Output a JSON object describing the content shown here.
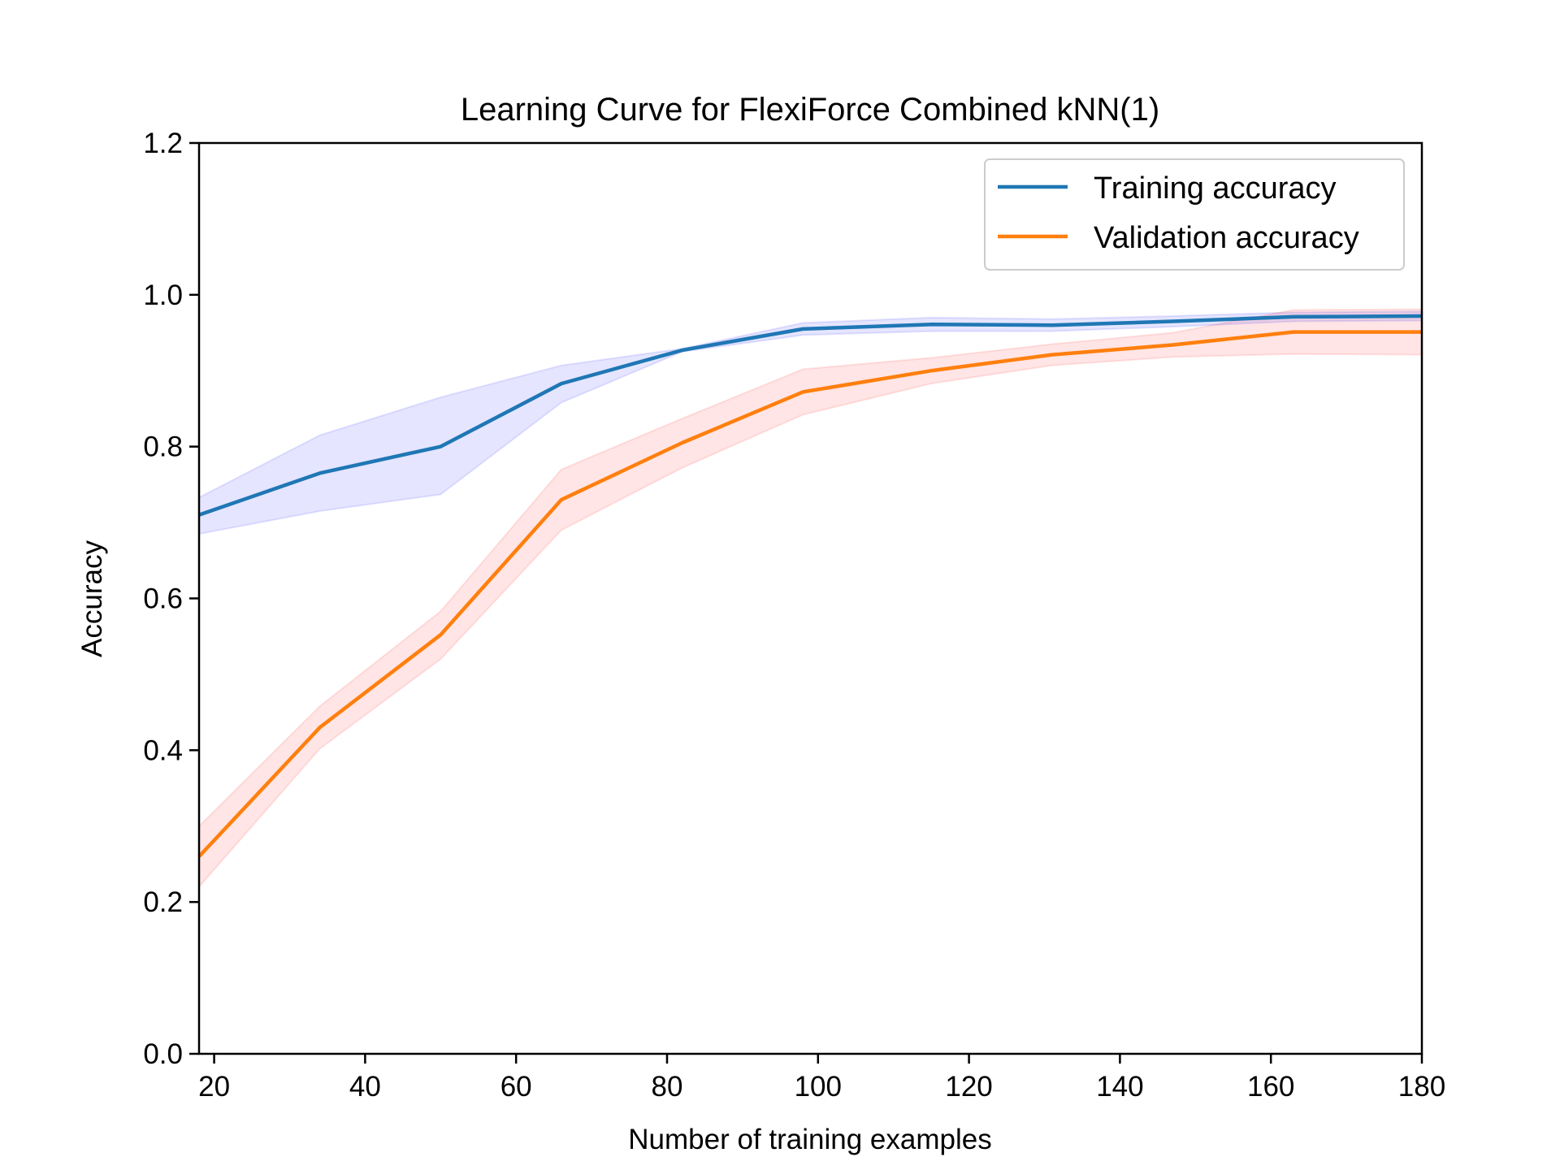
{
  "chart_data": {
    "type": "line",
    "title": "Learning Curve for FlexiForce Combined kNN(1)",
    "xlabel": "Number of training examples",
    "ylabel": "Accuracy",
    "xlim": [
      18,
      180
    ],
    "ylim": [
      0.0,
      1.2
    ],
    "xticks": [
      20,
      40,
      60,
      80,
      100,
      120,
      140,
      160,
      180
    ],
    "xtick_labels": [
      "20",
      "40",
      "60",
      "80",
      "100",
      "120",
      "140",
      "160",
      "180"
    ],
    "yticks": [
      0.0,
      0.2,
      0.4,
      0.6,
      0.8,
      1.0,
      1.2
    ],
    "ytick_labels": [
      "0.0",
      "0.2",
      "0.4",
      "0.6",
      "0.8",
      "1.0",
      "1.2"
    ],
    "grid": false,
    "legend_position": "top-right",
    "x": [
      18,
      34,
      50,
      66,
      82,
      98,
      115,
      131,
      147,
      163,
      180
    ],
    "series": [
      {
        "name": "Training accuracy",
        "color": "#1f77b4",
        "band_color": "#0000ff",
        "values": [
          0.71,
          0.765,
          0.8,
          0.883,
          0.927,
          0.955,
          0.961,
          0.96,
          0.965,
          0.971,
          0.972
        ],
        "lower": [
          0.685,
          0.715,
          0.737,
          0.858,
          0.925,
          0.947,
          0.952,
          0.952,
          0.958,
          0.965,
          0.966
        ],
        "upper": [
          0.733,
          0.815,
          0.865,
          0.907,
          0.929,
          0.963,
          0.97,
          0.968,
          0.972,
          0.977,
          0.978
        ]
      },
      {
        "name": "Validation accuracy",
        "color": "#ff7f0e",
        "band_color": "#ff0000",
        "values": [
          0.26,
          0.43,
          0.552,
          0.73,
          0.805,
          0.872,
          0.9,
          0.921,
          0.934,
          0.951,
          0.951
        ],
        "lower": [
          0.22,
          0.402,
          0.52,
          0.69,
          0.772,
          0.842,
          0.883,
          0.907,
          0.918,
          0.922,
          0.921
        ],
        "upper": [
          0.3,
          0.458,
          0.583,
          0.77,
          0.837,
          0.902,
          0.917,
          0.935,
          0.95,
          0.98,
          0.981
        ]
      }
    ]
  }
}
